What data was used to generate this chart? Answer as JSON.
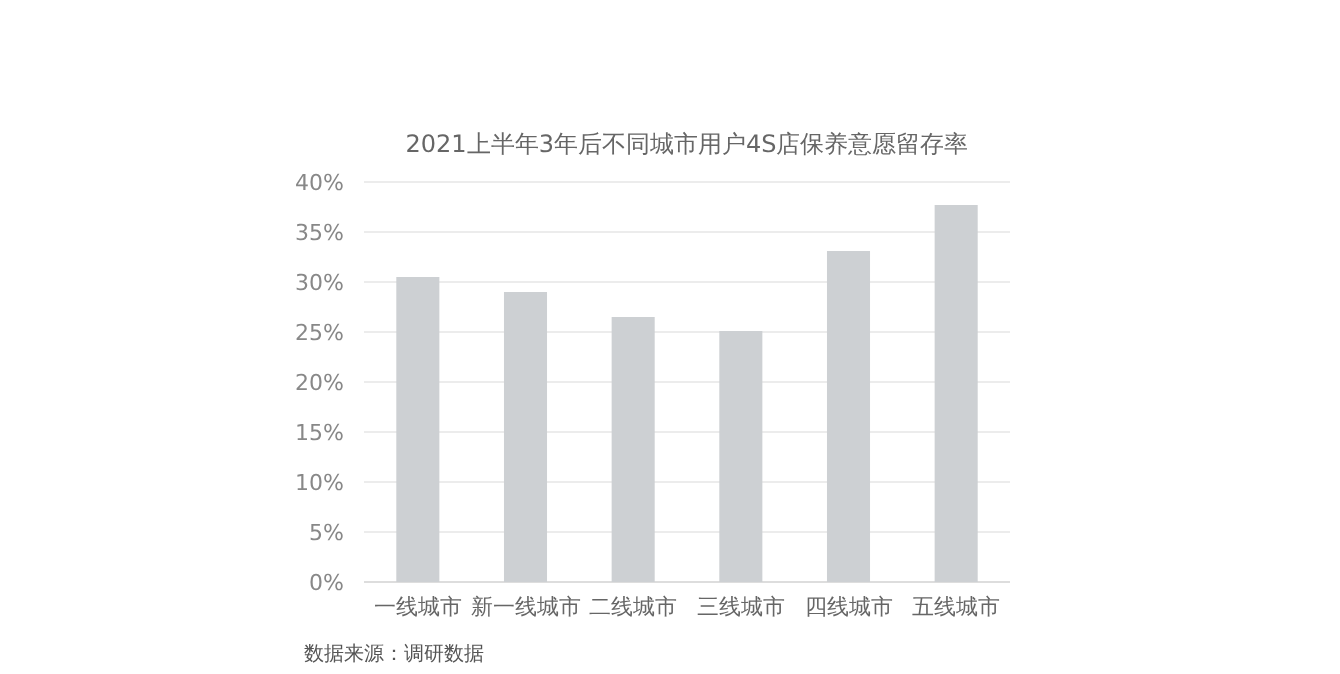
{
  "chart_data": {
    "type": "bar",
    "title": "2021上半年3年后不同城市用户4S店保养意愿留存率",
    "categories": [
      "一线城市",
      "新一线城市",
      "二线城市",
      "三线城市",
      "四线城市",
      "五线城市"
    ],
    "values": [
      30.5,
      29.0,
      26.5,
      25.1,
      33.1,
      37.7
    ],
    "color": "#cdd0d3",
    "ylim": [
      0,
      40
    ],
    "yticks": [
      {
        "value": 0,
        "label": "0%"
      },
      {
        "value": 5,
        "label": "5%"
      },
      {
        "value": 10,
        "label": "10%"
      },
      {
        "value": 15,
        "label": "15%"
      },
      {
        "value": 20,
        "label": "20%"
      },
      {
        "value": 25,
        "label": "25%"
      },
      {
        "value": 30,
        "label": "30%"
      },
      {
        "value": 35,
        "label": "35%"
      },
      {
        "value": 40,
        "label": "40%"
      }
    ],
    "grid": "y",
    "annotations": [
      "数据来源：调研数据"
    ]
  }
}
